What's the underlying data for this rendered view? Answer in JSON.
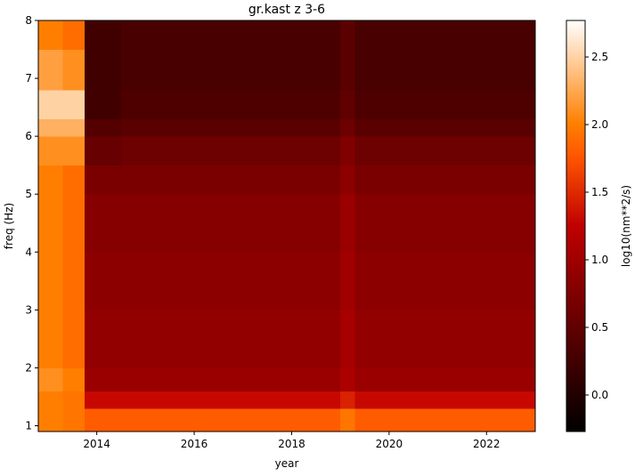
{
  "chart_data": {
    "type": "heatmap",
    "title": "gr.kast z 3-6",
    "xlabel": "year",
    "ylabel": "freq (Hz)",
    "colorbar_label": "log10(nm**2/s)",
    "colormap": "gist_heat",
    "xbins": [
      2012.8,
      2013.3,
      2013.75,
      2014.5,
      2015.5,
      2016.5,
      2017.5,
      2018.5,
      2019.0,
      2019.3,
      2020.0,
      2021.0,
      2022.0,
      2023.0
    ],
    "ybins": [
      0.9,
      1.3,
      1.6,
      2.0,
      3.0,
      4.0,
      5.0,
      5.5,
      6.0,
      6.3,
      6.8,
      7.5,
      8.0
    ],
    "values": [
      [
        2.0,
        1.95,
        1.8,
        1.8,
        1.8,
        1.8,
        1.8,
        1.8,
        1.95,
        1.8,
        1.8,
        1.8,
        1.8
      ],
      [
        2.0,
        1.95,
        1.3,
        1.3,
        1.3,
        1.3,
        1.3,
        1.3,
        1.45,
        1.3,
        1.3,
        1.3,
        1.3
      ],
      [
        2.1,
        2.0,
        0.95,
        0.95,
        0.95,
        0.95,
        0.95,
        0.95,
        1.1,
        0.95,
        0.95,
        0.95,
        0.95
      ],
      [
        2.0,
        1.9,
        0.9,
        0.9,
        0.9,
        0.9,
        0.9,
        0.9,
        1.05,
        0.9,
        0.9,
        0.9,
        0.9
      ],
      [
        2.0,
        1.9,
        0.85,
        0.85,
        0.85,
        0.85,
        0.85,
        0.85,
        1.0,
        0.85,
        0.85,
        0.85,
        0.85
      ],
      [
        2.0,
        1.9,
        0.8,
        0.8,
        0.8,
        0.8,
        0.8,
        0.8,
        0.95,
        0.8,
        0.8,
        0.8,
        0.8
      ],
      [
        2.0,
        1.9,
        0.7,
        0.7,
        0.7,
        0.7,
        0.7,
        0.7,
        0.85,
        0.7,
        0.7,
        0.7,
        0.7
      ],
      [
        2.1,
        2.1,
        0.55,
        0.6,
        0.6,
        0.6,
        0.6,
        0.6,
        0.75,
        0.6,
        0.6,
        0.6,
        0.6
      ],
      [
        2.3,
        2.3,
        0.4,
        0.45,
        0.45,
        0.45,
        0.45,
        0.45,
        0.6,
        0.45,
        0.45,
        0.45,
        0.45
      ],
      [
        2.5,
        2.5,
        0.25,
        0.35,
        0.35,
        0.35,
        0.35,
        0.35,
        0.5,
        0.35,
        0.35,
        0.35,
        0.35
      ],
      [
        2.2,
        2.1,
        0.25,
        0.3,
        0.3,
        0.3,
        0.3,
        0.3,
        0.45,
        0.3,
        0.3,
        0.3,
        0.3
      ],
      [
        2.0,
        1.9,
        0.25,
        0.3,
        0.3,
        0.3,
        0.3,
        0.3,
        0.45,
        0.3,
        0.3,
        0.3,
        0.3
      ]
    ],
    "xlim": [
      2012.8,
      2023.0
    ],
    "xticks": [
      2014,
      2016,
      2018,
      2020,
      2022
    ],
    "ylim": [
      0.9,
      8
    ],
    "yticks": [
      1,
      2,
      3,
      4,
      5,
      6,
      7,
      8
    ],
    "clim": [
      -0.27,
      2.77
    ],
    "cticks": [
      {
        "value": 0,
        "label": "0.0"
      },
      0.5,
      {
        "value": 1,
        "label": "1.0"
      },
      1.5,
      {
        "value": 2,
        "label": "2.0"
      },
      2.5
    ]
  }
}
